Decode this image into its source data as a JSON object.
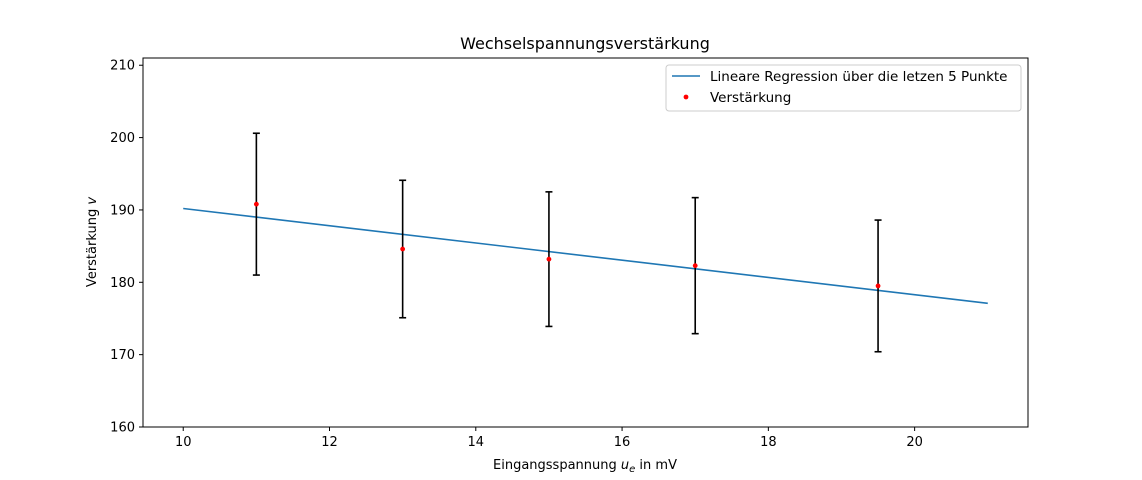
{
  "chart_data": {
    "type": "scatter",
    "title": "Wechselspannungsverstärkung",
    "xlabel": {
      "prefix": "Eingangsspannung ",
      "var": "u",
      "sub": "e",
      "suffix": " in mV"
    },
    "ylabel": {
      "prefix": "Verstärkung ",
      "var": "v"
    },
    "xlim": [
      9.45,
      21.55
    ],
    "ylim": [
      160,
      211
    ],
    "xticks": [
      10,
      12,
      14,
      16,
      18,
      20
    ],
    "yticks": [
      160,
      170,
      180,
      190,
      200,
      210
    ],
    "grid": false,
    "legend_position": "top-right",
    "series": [
      {
        "name": "Lineare Regression über die letzen 5 Punkte",
        "type": "line",
        "color": "#1f77b4",
        "x": [
          10,
          21
        ],
        "y": [
          190.2,
          177.1
        ]
      },
      {
        "name": "Verstärkung",
        "type": "scatter",
        "color": "#ff0000",
        "x": [
          11,
          13,
          15,
          17,
          19.5
        ],
        "y": [
          190.8,
          184.6,
          183.2,
          182.3,
          179.5
        ],
        "yerr": [
          9.8,
          9.5,
          9.3,
          9.4,
          9.1
        ],
        "errorbar_color": "#000000"
      }
    ]
  }
}
